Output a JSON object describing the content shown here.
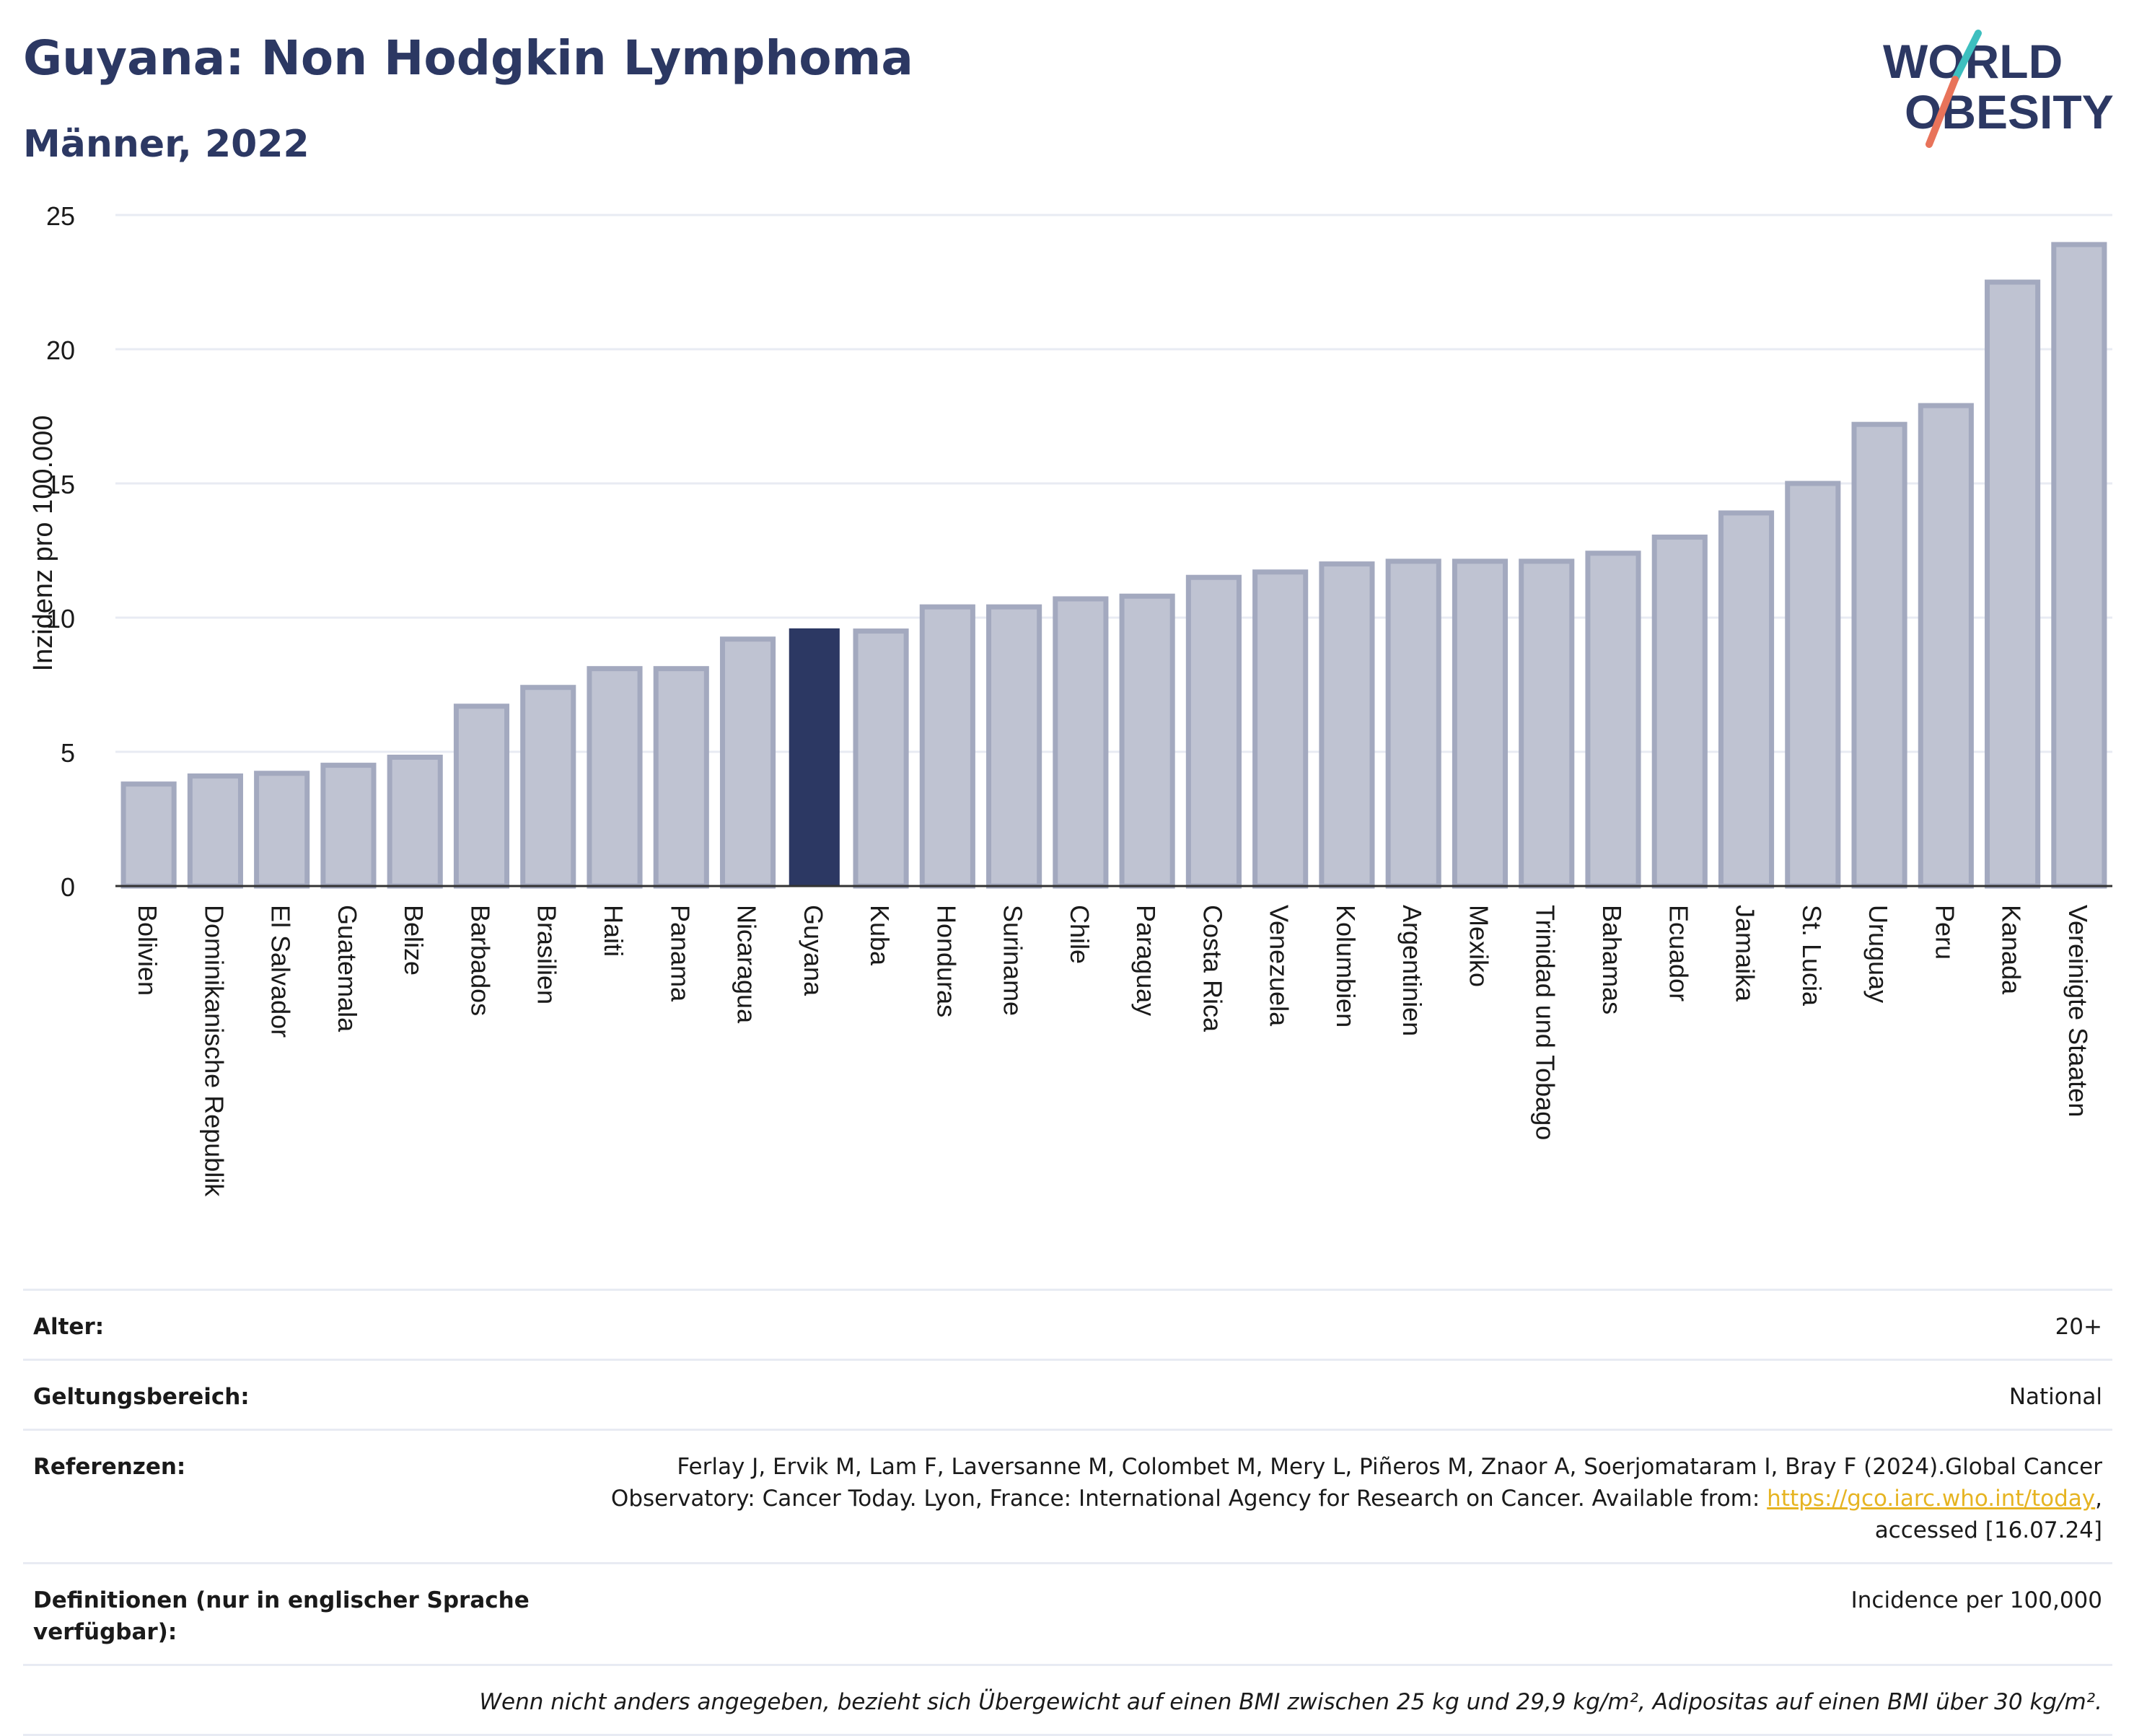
{
  "header": {
    "title": "Guyana: Non Hodgkin Lymphoma",
    "subtitle": "Männer, 2022"
  },
  "logo": {
    "line1": "WORLD",
    "line2": "OBESITY",
    "accent_colors": [
      "#3dbfbf",
      "#e8735a"
    ],
    "text_color": "#2c3863"
  },
  "colors": {
    "bar": "#bfc3d2",
    "bar_stroke": "#a3a9bf",
    "highlight": "#2c3863",
    "grid": "#e8ebf3",
    "axis": "#333333"
  },
  "chart_data": {
    "type": "bar",
    "title": "Guyana: Non Hodgkin Lymphoma",
    "subtitle": "Männer, 2022",
    "ylabel": "Inzidenz pro 100.000",
    "xlabel": "",
    "ylim": [
      0,
      25
    ],
    "yticks": [
      0,
      5,
      10,
      15,
      20,
      25
    ],
    "grid": true,
    "highlight_category": "Guyana",
    "categories": [
      "Bolivien",
      "Dominikanische Republik",
      "El Salvador",
      "Guatemala",
      "Belize",
      "Barbados",
      "Brasilien",
      "Haiti",
      "Panama",
      "Nicaragua",
      "Guyana",
      "Kuba",
      "Honduras",
      "Suriname",
      "Chile",
      "Paraguay",
      "Costa Rica",
      "Venezuela",
      "Kolumbien",
      "Argentinien",
      "Mexiko",
      "Trinidad und Tobago",
      "Bahamas",
      "Ecuador",
      "Jamaika",
      "St. Lucia",
      "Uruguay",
      "Peru",
      "Kanada",
      "Vereinigte Staaten"
    ],
    "values": [
      3.8,
      4.1,
      4.2,
      4.5,
      4.8,
      6.7,
      7.4,
      8.1,
      8.1,
      9.2,
      9.6,
      9.5,
      10.4,
      10.4,
      10.7,
      10.8,
      11.5,
      11.7,
      12.0,
      12.1,
      12.1,
      12.1,
      12.4,
      13.0,
      13.9,
      15.0,
      17.2,
      17.9,
      22.5,
      23.9
    ]
  },
  "info": {
    "age_label": "Alter:",
    "age_value": "20+",
    "scope_label": "Geltungsbereich:",
    "scope_value": "National",
    "ref_label": "Referenzen:",
    "ref_text_1": "Ferlay J, Ervik M, Lam F, Laversanne M, Colombet M, Mery L, Piñeros M, Znaor A, Soerjomataram I, Bray F (2024).Global Cancer",
    "ref_text_2": "Observatory: Cancer Today. Lyon, France: International Agency for Research on Cancer. Available from: ",
    "ref_link": "https://gco.iarc.who.int/today",
    "ref_text_3": ",",
    "ref_text_4": "accessed [16.07.24]",
    "def_label": "Definitionen (nur in englischer Sprache verfügbar):",
    "def_value": "Incidence per 100,000",
    "note": "Wenn nicht anders angegeben, bezieht sich Übergewicht auf einen BMI zwischen 25 kg und 29,9 kg/m², Adipositas auf einen BMI über 30 kg/m²."
  }
}
